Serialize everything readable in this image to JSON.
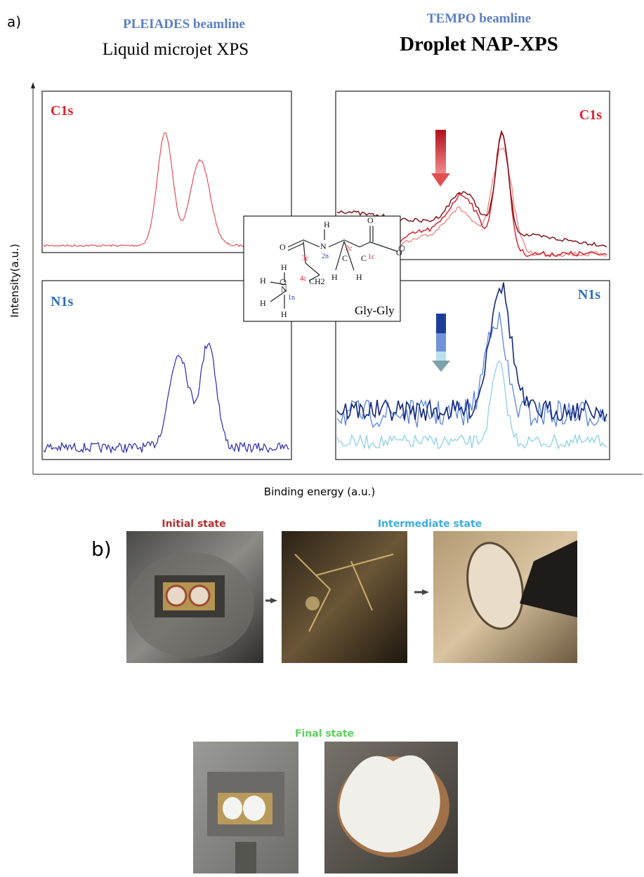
{
  "panel_a": {
    "label": "a)",
    "left": {
      "beamline": "PLEIADES beamline",
      "technique": "Liquid microjet XPS"
    },
    "right": {
      "beamline": "TEMPO beamline",
      "technique": "Droplet NAP-XPS"
    },
    "plots": {
      "top_left": "C1s",
      "bottom_left": "N1s",
      "top_right": "C1s",
      "bottom_right": "N1s"
    },
    "y_axis_label": "Intensity(a.u.)",
    "x_axis_label": "Binding energy (a.u.)",
    "molecule": {
      "name": "Gly-Gly",
      "atoms": [
        "H",
        "N",
        "O",
        "O",
        "O",
        "C",
        "C",
        "H",
        "H",
        "CH2",
        "N",
        "H",
        "H",
        "H",
        "H"
      ],
      "sites": [
        "3c",
        "2n",
        "2c",
        "1c",
        "4c",
        "1n"
      ]
    }
  },
  "panel_b": {
    "label": "b)",
    "states": {
      "initial": "Initial state",
      "intermediate": "Intermediate  state",
      "final": "Final state"
    }
  }
}
